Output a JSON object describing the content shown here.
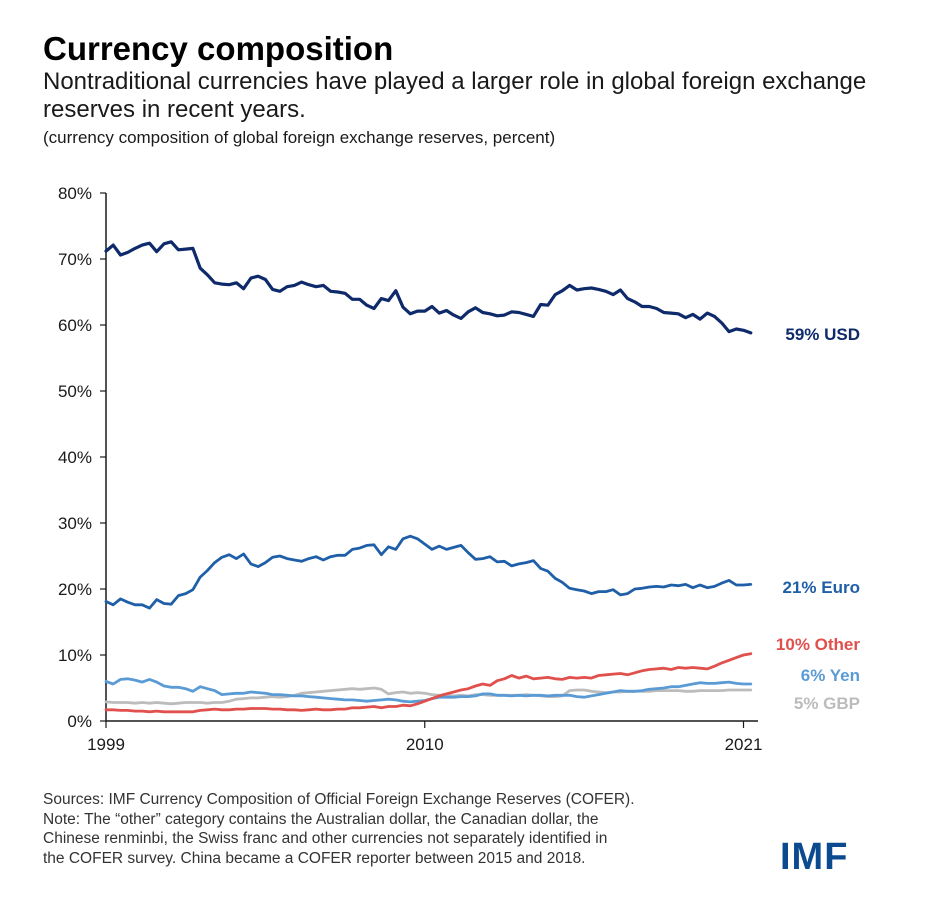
{
  "title": "Currency composition",
  "subtitle": "Nontraditional currencies have played a larger role in global foreign exchange reserves in recent years.",
  "unit_note": "(currency composition of global foreign exchange reserves, percent)",
  "notes": [
    "Sources: IMF Currency Composition of Official Foreign Exchange Reserves (COFER).",
    "Note: The “other” category contains the Australian dollar, the Canadian dollar, the",
    "Chinese renminbi, the Swiss franc and other currencies not separately identified in",
    "the COFER survey. China became a COFER reporter between 2015 and 2018."
  ],
  "logo": "IMF",
  "colors": {
    "usd": "#0e2a6b",
    "euro": "#1f5fa8",
    "other": "#e0504c",
    "yen": "#5b9bd5",
    "gbp": "#bcbcbc",
    "axis": "#1a1a1a"
  },
  "chart_data": {
    "type": "line",
    "xlim": [
      1999.0,
      2021.5
    ],
    "ylim": [
      0,
      80
    ],
    "xticks": [
      "1999",
      "2010",
      "2021"
    ],
    "yticks": [
      "80%",
      "70%",
      "60%",
      "50%",
      "40%",
      "30%",
      "20%",
      "10%",
      "0%"
    ],
    "grid": false,
    "series": [
      {
        "key": "usd",
        "name": "USD",
        "end_label": "59% USD",
        "x": [
          1999.0,
          1999.25,
          1999.5,
          1999.75,
          2000.0,
          2000.25,
          2000.5,
          2000.75,
          2001.0,
          2001.25,
          2001.5,
          2001.75,
          2002.0,
          2002.25,
          2002.5,
          2002.75,
          2003.0,
          2003.25,
          2003.5,
          2003.75,
          2004.0,
          2004.25,
          2004.5,
          2004.75,
          2005.0,
          2005.25,
          2005.5,
          2005.75,
          2006.0,
          2006.25,
          2006.5,
          2006.75,
          2007.0,
          2007.25,
          2007.5,
          2007.75,
          2008.0,
          2008.25,
          2008.5,
          2008.75,
          2009.0,
          2009.25,
          2009.5,
          2009.75,
          2010.0,
          2010.25,
          2010.5,
          2010.75,
          2011.0,
          2011.25,
          2011.5,
          2011.75,
          2012.0,
          2012.25,
          2012.5,
          2012.75,
          2013.0,
          2013.25,
          2013.5,
          2013.75,
          2014.0,
          2014.25,
          2014.5,
          2014.75,
          2015.0,
          2015.25,
          2015.5,
          2015.75,
          2016.0,
          2016.25,
          2016.5,
          2016.75,
          2017.0,
          2017.25,
          2017.5,
          2017.75,
          2018.0,
          2018.25,
          2018.5,
          2018.75,
          2019.0,
          2019.25,
          2019.5,
          2019.75,
          2020.0,
          2020.25,
          2020.5,
          2020.75,
          2021.0,
          2021.25
        ],
        "y": [
          71.2,
          72.1,
          70.6,
          71.0,
          71.6,
          72.1,
          72.4,
          71.1,
          72.3,
          72.6,
          71.4,
          71.5,
          71.6,
          68.6,
          67.6,
          66.4,
          66.2,
          66.1,
          66.4,
          65.5,
          67.1,
          67.4,
          66.9,
          65.4,
          65.1,
          65.8,
          66.0,
          66.5,
          66.1,
          65.8,
          66.0,
          65.1,
          65.0,
          64.8,
          63.9,
          63.9,
          63.0,
          62.5,
          64.0,
          63.7,
          65.2,
          62.7,
          61.7,
          62.1,
          62.1,
          62.8,
          61.8,
          62.2,
          61.5,
          61.0,
          62.0,
          62.6,
          61.9,
          61.7,
          61.4,
          61.5,
          62.0,
          61.9,
          61.6,
          61.3,
          63.1,
          63.0,
          64.6,
          65.2,
          66.0,
          65.3,
          65.5,
          65.6,
          65.4,
          65.1,
          64.6,
          65.3,
          64.0,
          63.5,
          62.8,
          62.8,
          62.5,
          61.9,
          61.8,
          61.7,
          61.1,
          61.6,
          60.9,
          61.8,
          61.3,
          60.3,
          59.0,
          59.4,
          59.2,
          58.8
        ]
      },
      {
        "key": "euro",
        "name": "Euro",
        "end_label": "21% Euro",
        "x": [
          1999.0,
          1999.25,
          1999.5,
          1999.75,
          2000.0,
          2000.25,
          2000.5,
          2000.75,
          2001.0,
          2001.25,
          2001.5,
          2001.75,
          2002.0,
          2002.25,
          2002.5,
          2002.75,
          2003.0,
          2003.25,
          2003.5,
          2003.75,
          2004.0,
          2004.25,
          2004.5,
          2004.75,
          2005.0,
          2005.25,
          2005.5,
          2005.75,
          2006.0,
          2006.25,
          2006.5,
          2006.75,
          2007.0,
          2007.25,
          2007.5,
          2007.75,
          2008.0,
          2008.25,
          2008.5,
          2008.75,
          2009.0,
          2009.25,
          2009.5,
          2009.75,
          2010.0,
          2010.25,
          2010.5,
          2010.75,
          2011.0,
          2011.25,
          2011.5,
          2011.75,
          2012.0,
          2012.25,
          2012.5,
          2012.75,
          2013.0,
          2013.25,
          2013.5,
          2013.75,
          2014.0,
          2014.25,
          2014.5,
          2014.75,
          2015.0,
          2015.25,
          2015.5,
          2015.75,
          2016.0,
          2016.25,
          2016.5,
          2016.75,
          2017.0,
          2017.25,
          2017.5,
          2017.75,
          2018.0,
          2018.25,
          2018.5,
          2018.75,
          2019.0,
          2019.25,
          2019.5,
          2019.75,
          2020.0,
          2020.25,
          2020.5,
          2020.75,
          2021.0,
          2021.25
        ],
        "y": [
          18.1,
          17.6,
          18.5,
          18.0,
          17.6,
          17.6,
          17.1,
          18.4,
          17.8,
          17.7,
          19.0,
          19.3,
          19.9,
          21.8,
          22.8,
          24.0,
          24.8,
          25.2,
          24.6,
          25.3,
          23.8,
          23.4,
          24.0,
          24.8,
          25.0,
          24.6,
          24.4,
          24.2,
          24.6,
          24.9,
          24.4,
          24.9,
          25.1,
          25.1,
          26.0,
          26.2,
          26.6,
          26.7,
          25.2,
          26.4,
          26.0,
          27.6,
          28.0,
          27.6,
          26.8,
          26.0,
          26.5,
          26.0,
          26.3,
          26.6,
          25.5,
          24.5,
          24.6,
          24.9,
          24.1,
          24.2,
          23.5,
          23.8,
          24.0,
          24.3,
          23.1,
          22.7,
          21.6,
          21.0,
          20.1,
          19.9,
          19.7,
          19.3,
          19.6,
          19.6,
          19.9,
          19.1,
          19.3,
          20.0,
          20.1,
          20.3,
          20.4,
          20.3,
          20.6,
          20.5,
          20.7,
          20.2,
          20.6,
          20.2,
          20.4,
          20.9,
          21.3,
          20.6,
          20.6,
          20.7
        ]
      },
      {
        "key": "other",
        "name": "Other",
        "end_label": "10% Other",
        "x": [
          1999.0,
          1999.25,
          1999.5,
          1999.75,
          2000.0,
          2000.25,
          2000.5,
          2000.75,
          2001.0,
          2001.25,
          2001.5,
          2001.75,
          2002.0,
          2002.25,
          2002.5,
          2002.75,
          2003.0,
          2003.25,
          2003.5,
          2003.75,
          2004.0,
          2004.25,
          2004.5,
          2004.75,
          2005.0,
          2005.25,
          2005.5,
          2005.75,
          2006.0,
          2006.25,
          2006.5,
          2006.75,
          2007.0,
          2007.25,
          2007.5,
          2007.75,
          2008.0,
          2008.25,
          2008.5,
          2008.75,
          2009.0,
          2009.25,
          2009.5,
          2009.75,
          2010.0,
          2010.25,
          2010.5,
          2010.75,
          2011.0,
          2011.25,
          2011.5,
          2011.75,
          2012.0,
          2012.25,
          2012.5,
          2012.75,
          2013.0,
          2013.25,
          2013.5,
          2013.75,
          2014.0,
          2014.25,
          2014.5,
          2014.75,
          2015.0,
          2015.25,
          2015.5,
          2015.75,
          2016.0,
          2016.25,
          2016.5,
          2016.75,
          2017.0,
          2017.25,
          2017.5,
          2017.75,
          2018.0,
          2018.25,
          2018.5,
          2018.75,
          2019.0,
          2019.25,
          2019.5,
          2019.75,
          2020.0,
          2020.25,
          2020.5,
          2020.75,
          2021.0,
          2021.25
        ],
        "y": [
          1.7,
          1.7,
          1.6,
          1.6,
          1.5,
          1.5,
          1.4,
          1.5,
          1.4,
          1.4,
          1.4,
          1.4,
          1.4,
          1.6,
          1.7,
          1.8,
          1.7,
          1.7,
          1.8,
          1.8,
          1.9,
          1.9,
          1.9,
          1.8,
          1.8,
          1.7,
          1.7,
          1.6,
          1.7,
          1.8,
          1.7,
          1.7,
          1.8,
          1.8,
          2.0,
          2.0,
          2.1,
          2.2,
          2.0,
          2.2,
          2.2,
          2.4,
          2.3,
          2.6,
          3.0,
          3.4,
          3.8,
          4.1,
          4.4,
          4.7,
          4.9,
          5.3,
          5.6,
          5.4,
          6.1,
          6.4,
          6.9,
          6.5,
          6.8,
          6.4,
          6.5,
          6.6,
          6.4,
          6.3,
          6.6,
          6.5,
          6.6,
          6.5,
          6.9,
          7.0,
          7.1,
          7.2,
          7.0,
          7.3,
          7.6,
          7.8,
          7.9,
          8.0,
          7.8,
          8.1,
          8.0,
          8.1,
          8.0,
          7.9,
          8.3,
          8.8,
          9.2,
          9.6,
          10.0,
          10.2
        ]
      },
      {
        "key": "yen",
        "name": "Yen",
        "end_label": "6% Yen",
        "x": [
          1999.0,
          1999.25,
          1999.5,
          1999.75,
          2000.0,
          2000.25,
          2000.5,
          2000.75,
          2001.0,
          2001.25,
          2001.5,
          2001.75,
          2002.0,
          2002.25,
          2002.5,
          2002.75,
          2003.0,
          2003.25,
          2003.5,
          2003.75,
          2004.0,
          2004.25,
          2004.5,
          2004.75,
          2005.0,
          2005.25,
          2005.5,
          2005.75,
          2006.0,
          2006.25,
          2006.5,
          2006.75,
          2007.0,
          2007.25,
          2007.5,
          2007.75,
          2008.0,
          2008.25,
          2008.5,
          2008.75,
          2009.0,
          2009.25,
          2009.5,
          2009.75,
          2010.0,
          2010.25,
          2010.5,
          2010.75,
          2011.0,
          2011.25,
          2011.5,
          2011.75,
          2012.0,
          2012.25,
          2012.5,
          2012.75,
          2013.0,
          2013.25,
          2013.5,
          2013.75,
          2014.0,
          2014.25,
          2014.5,
          2014.75,
          2015.0,
          2015.25,
          2015.5,
          2015.75,
          2016.0,
          2016.25,
          2016.5,
          2016.75,
          2017.0,
          2017.25,
          2017.5,
          2017.75,
          2018.0,
          2018.25,
          2018.5,
          2018.75,
          2019.0,
          2019.25,
          2019.5,
          2019.75,
          2020.0,
          2020.25,
          2020.5,
          2020.75,
          2021.0,
          2021.25
        ],
        "y": [
          6.0,
          5.6,
          6.3,
          6.4,
          6.2,
          5.9,
          6.3,
          5.9,
          5.3,
          5.1,
          5.1,
          4.9,
          4.5,
          5.2,
          4.9,
          4.6,
          4.0,
          4.1,
          4.2,
          4.2,
          4.4,
          4.3,
          4.2,
          4.0,
          4.0,
          3.9,
          3.8,
          3.8,
          3.7,
          3.6,
          3.5,
          3.4,
          3.3,
          3.2,
          3.2,
          3.1,
          3.0,
          3.1,
          3.2,
          3.3,
          3.2,
          3.0,
          2.9,
          3.0,
          3.1,
          3.4,
          3.6,
          3.6,
          3.6,
          3.7,
          3.7,
          3.8,
          4.1,
          4.1,
          3.9,
          3.9,
          3.8,
          3.9,
          3.8,
          3.9,
          3.9,
          3.8,
          3.9,
          3.9,
          3.9,
          3.7,
          3.6,
          3.8,
          4.0,
          4.2,
          4.4,
          4.6,
          4.5,
          4.5,
          4.6,
          4.8,
          4.9,
          5.0,
          5.2,
          5.2,
          5.4,
          5.6,
          5.8,
          5.7,
          5.7,
          5.8,
          5.9,
          5.7,
          5.6,
          5.6
        ]
      },
      {
        "key": "gbp",
        "name": "GBP",
        "end_label": "5% GBP",
        "x": [
          1999.0,
          1999.25,
          1999.5,
          1999.75,
          2000.0,
          2000.25,
          2000.5,
          2000.75,
          2001.0,
          2001.25,
          2001.5,
          2001.75,
          2002.0,
          2002.25,
          2002.5,
          2002.75,
          2003.0,
          2003.25,
          2003.5,
          2003.75,
          2004.0,
          2004.25,
          2004.5,
          2004.75,
          2005.0,
          2005.25,
          2005.5,
          2005.75,
          2006.0,
          2006.25,
          2006.5,
          2006.75,
          2007.0,
          2007.25,
          2007.5,
          2007.75,
          2008.0,
          2008.25,
          2008.5,
          2008.75,
          2009.0,
          2009.25,
          2009.5,
          2009.75,
          2010.0,
          2010.25,
          2010.5,
          2010.75,
          2011.0,
          2011.25,
          2011.5,
          2011.75,
          2012.0,
          2012.25,
          2012.5,
          2012.75,
          2013.0,
          2013.25,
          2013.5,
          2013.75,
          2014.0,
          2014.25,
          2014.5,
          2014.75,
          2015.0,
          2015.25,
          2015.5,
          2015.75,
          2016.0,
          2016.25,
          2016.5,
          2016.75,
          2017.0,
          2017.25,
          2017.5,
          2017.75,
          2018.0,
          2018.25,
          2018.5,
          2018.75,
          2019.0,
          2019.25,
          2019.5,
          2019.75,
          2020.0,
          2020.25,
          2020.5,
          2020.75,
          2021.0,
          2021.25
        ],
        "y": [
          2.9,
          2.8,
          2.8,
          2.8,
          2.7,
          2.8,
          2.7,
          2.8,
          2.7,
          2.6,
          2.7,
          2.8,
          2.8,
          2.8,
          2.7,
          2.8,
          2.8,
          3.0,
          3.3,
          3.4,
          3.5,
          3.5,
          3.6,
          3.7,
          3.6,
          3.7,
          3.9,
          4.2,
          4.3,
          4.4,
          4.5,
          4.6,
          4.7,
          4.8,
          4.9,
          4.8,
          4.9,
          5.0,
          4.8,
          4.1,
          4.3,
          4.4,
          4.2,
          4.3,
          4.2,
          4.0,
          3.9,
          3.9,
          3.8,
          3.9,
          3.8,
          4.0,
          4.0,
          3.9,
          3.9,
          3.9,
          3.9,
          3.9,
          4.0,
          3.9,
          3.8,
          3.7,
          3.7,
          3.8,
          4.6,
          4.7,
          4.7,
          4.5,
          4.4,
          4.3,
          4.4,
          4.4,
          4.5,
          4.5,
          4.5,
          4.5,
          4.6,
          4.6,
          4.6,
          4.6,
          4.5,
          4.5,
          4.6,
          4.6,
          4.6,
          4.6,
          4.7,
          4.7,
          4.7,
          4.7
        ]
      }
    ]
  }
}
